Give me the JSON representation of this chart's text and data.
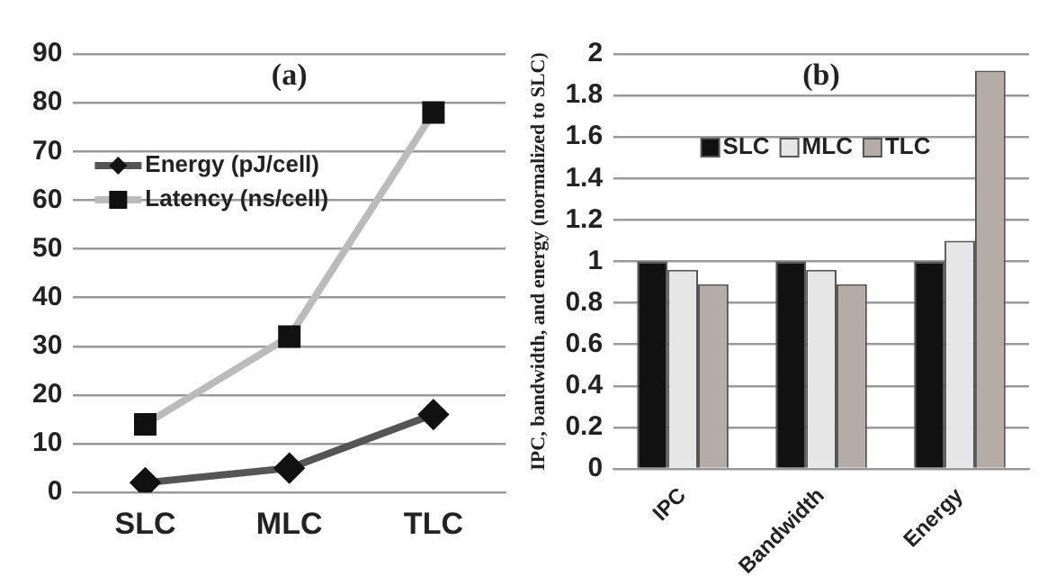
{
  "chart_data": [
    {
      "type": "line",
      "title": "(a)",
      "categories": [
        "SLC",
        "MLC",
        "TLC"
      ],
      "series": [
        {
          "name": "Energy (pJ/cell)",
          "color": "#555555",
          "marker": "diamond",
          "values": [
            2,
            5,
            16
          ]
        },
        {
          "name": "Latency (ns/cell)",
          "color": "#bbbbbb",
          "marker": "square",
          "values": [
            14,
            32,
            78
          ]
        }
      ],
      "ylim": [
        0,
        90
      ],
      "yticks": [
        0,
        10,
        20,
        30,
        40,
        50,
        60,
        70,
        80,
        90
      ],
      "grid": "y",
      "legend": "top left"
    },
    {
      "type": "bar",
      "title": "(b)",
      "ylabel": "IPC, bandwidth, and energy (normalized to SLC)",
      "categories": [
        "IPC",
        "Bandwidth",
        "Energy"
      ],
      "series": [
        {
          "name": "SLC",
          "color": "#111111",
          "values": [
            1,
            1,
            1
          ]
        },
        {
          "name": "MLC",
          "color": "#e6e6e6",
          "values": [
            0.96,
            0.96,
            1.1
          ]
        },
        {
          "name": "TLC",
          "color": "#b5aca6",
          "values": [
            0.89,
            0.89,
            1.92
          ]
        }
      ],
      "ylim": [
        0,
        2
      ],
      "yticks": [
        0,
        0.2,
        0.4,
        0.6,
        0.8,
        1,
        1.2,
        1.4,
        1.6,
        1.8,
        2
      ],
      "grid": "y",
      "legend": "top"
    }
  ]
}
